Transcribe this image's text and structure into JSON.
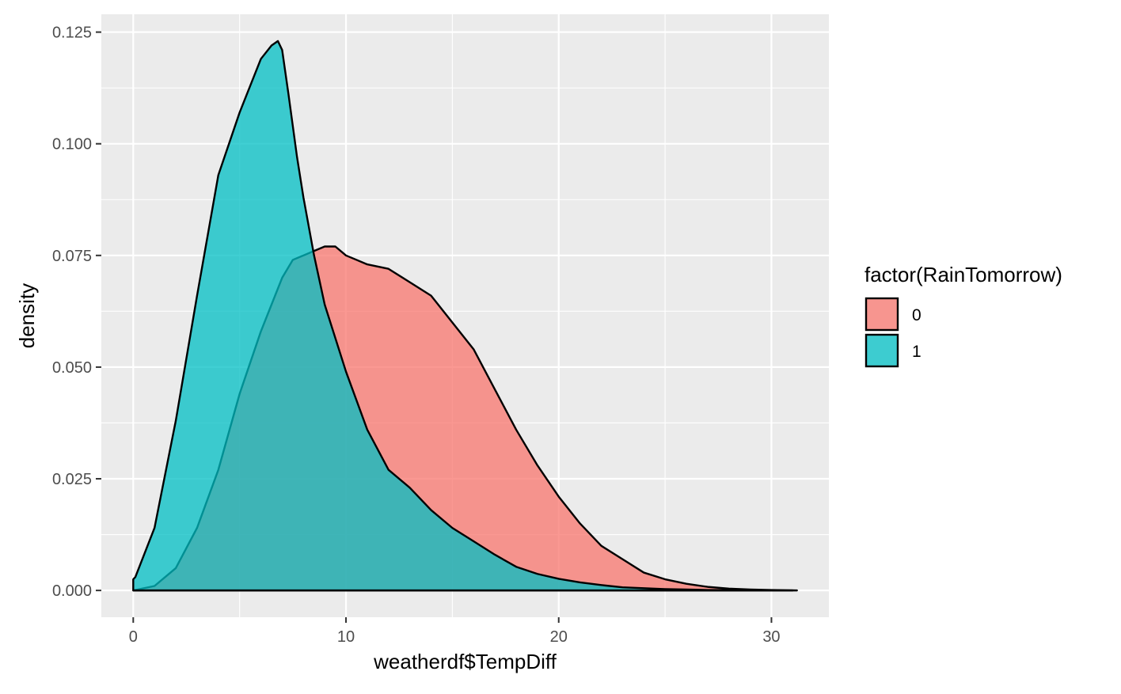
{
  "chart_data": {
    "type": "area",
    "xlabel": "weatherdf$TempDiff",
    "ylabel": "density",
    "xlim": [
      -1.5,
      32.7
    ],
    "ylim": [
      -0.006,
      0.129
    ],
    "xticks": [
      0,
      10,
      20,
      30
    ],
    "xtick_labels": [
      "0",
      "10",
      "20",
      "30"
    ],
    "yticks": [
      0.0,
      0.025,
      0.05,
      0.075,
      0.1,
      0.125
    ],
    "ytick_labels": [
      "0.000",
      "0.025",
      "0.050",
      "0.075",
      "0.100",
      "0.125"
    ],
    "grid": true,
    "legend": {
      "title": "factor(RainTomorrow)",
      "position": "right"
    },
    "series": [
      {
        "name": "0",
        "color": "#F8766D",
        "x": [
          0,
          1,
          2,
          3,
          4,
          5,
          6,
          7,
          7.5,
          8,
          8.5,
          9,
          9.5,
          10,
          10.5,
          11,
          12,
          13,
          14,
          15,
          16,
          17,
          18,
          19,
          20,
          21,
          22,
          23,
          24,
          25,
          26,
          27,
          28,
          29,
          30,
          31.2
        ],
        "y": [
          0.0,
          0.001,
          0.005,
          0.014,
          0.027,
          0.044,
          0.058,
          0.07,
          0.074,
          0.075,
          0.076,
          0.077,
          0.077,
          0.075,
          0.074,
          0.073,
          0.072,
          0.069,
          0.066,
          0.06,
          0.054,
          0.045,
          0.036,
          0.028,
          0.021,
          0.015,
          0.01,
          0.007,
          0.004,
          0.0025,
          0.0015,
          0.0008,
          0.0004,
          0.0002,
          0.0001,
          0.0
        ]
      },
      {
        "name": "1",
        "color": "#00BFC4",
        "x": [
          0,
          0.1,
          1,
          2,
          3,
          4,
          5,
          6,
          6.5,
          6.8,
          7,
          7.3,
          7.7,
          8,
          8.5,
          9,
          10,
          11,
          12,
          13,
          14,
          15,
          16,
          17,
          18,
          19,
          20,
          21,
          22,
          23,
          24,
          25,
          26,
          27,
          28,
          29,
          30,
          31
        ],
        "y": [
          0.0025,
          0.003,
          0.014,
          0.038,
          0.066,
          0.093,
          0.107,
          0.119,
          0.122,
          0.123,
          0.121,
          0.111,
          0.097,
          0.088,
          0.075,
          0.064,
          0.049,
          0.036,
          0.027,
          0.023,
          0.018,
          0.014,
          0.011,
          0.008,
          0.0053,
          0.0037,
          0.0026,
          0.0018,
          0.0012,
          0.0007,
          0.0005,
          0.0003,
          0.0002,
          0.0001,
          0.0001,
          0.0,
          0.0,
          0.0
        ]
      }
    ]
  }
}
